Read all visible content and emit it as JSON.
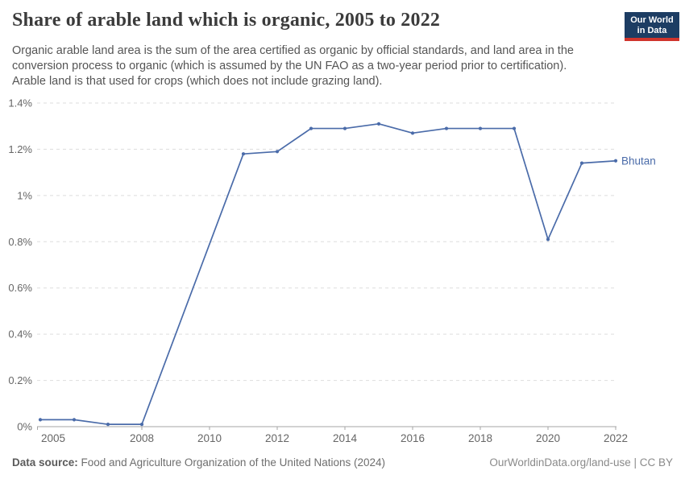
{
  "header": {
    "title": "Share of arable land which is organic, 2005 to 2022",
    "subtitle": "Organic arable land area is the sum of the area certified as organic by official standards, and land area in the conversion process to organic (which is assumed by the UN FAO as a two-year period prior to certification). Arable land is that used for crops (which does not include grazing land).",
    "logo": {
      "line1": "Our World",
      "line2": "in Data",
      "bg_color": "#1d3d63",
      "accent_color": "#d0342c"
    }
  },
  "chart_data": {
    "type": "line",
    "title": "Share of arable land which is organic, 2005 to 2022",
    "xlabel": "",
    "ylabel": "",
    "xlim": [
      2005,
      2022
    ],
    "ylim": [
      0,
      1.4
    ],
    "grid": "horizontal-dashed",
    "legend_position": "end-of-line-label",
    "x_ticks": [
      2005,
      2008,
      2010,
      2012,
      2014,
      2016,
      2018,
      2020,
      2022
    ],
    "y_ticks": [
      0,
      0.2,
      0.4,
      0.6,
      0.8,
      1.0,
      1.2,
      1.4
    ],
    "y_tick_labels": [
      "0%",
      "0.2%",
      "0.4%",
      "0.6%",
      "0.8%",
      "1%",
      "1.2%",
      "1.4%"
    ],
    "series": [
      {
        "name": "Bhutan",
        "color": "#4a6ba9",
        "unit": "%",
        "points": [
          {
            "x": 2005,
            "y": 0.03
          },
          {
            "x": 2006,
            "y": 0.03
          },
          {
            "x": 2007,
            "y": 0.01
          },
          {
            "x": 2008,
            "y": 0.01
          },
          {
            "x": 2011,
            "y": 1.18
          },
          {
            "x": 2012,
            "y": 1.19
          },
          {
            "x": 2013,
            "y": 1.29
          },
          {
            "x": 2014,
            "y": 1.29
          },
          {
            "x": 2015,
            "y": 1.31
          },
          {
            "x": 2016,
            "y": 1.27
          },
          {
            "x": 2017,
            "y": 1.29
          },
          {
            "x": 2018,
            "y": 1.29
          },
          {
            "x": 2019,
            "y": 1.29
          },
          {
            "x": 2020,
            "y": 0.81
          },
          {
            "x": 2021,
            "y": 1.14
          },
          {
            "x": 2022,
            "y": 1.15
          }
        ]
      }
    ]
  },
  "footer": {
    "datasource_label": "Data source:",
    "datasource_text": " Food and Agriculture Organization of the United Nations (2024)",
    "credit": "OurWorldinData.org/land-use | CC BY"
  }
}
